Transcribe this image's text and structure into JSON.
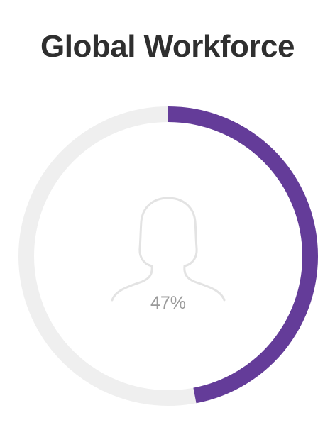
{
  "title": "Global Workforce",
  "chart_data": {
    "type": "pie",
    "style": "donut-progress",
    "value": 47,
    "max": 100,
    "label": "47%",
    "colors": {
      "progress": "#643c99",
      "track": "#efefef",
      "icon": "#e3e3e3",
      "label": "#9a9a9a"
    },
    "center_icon": "woman-silhouette-icon"
  }
}
